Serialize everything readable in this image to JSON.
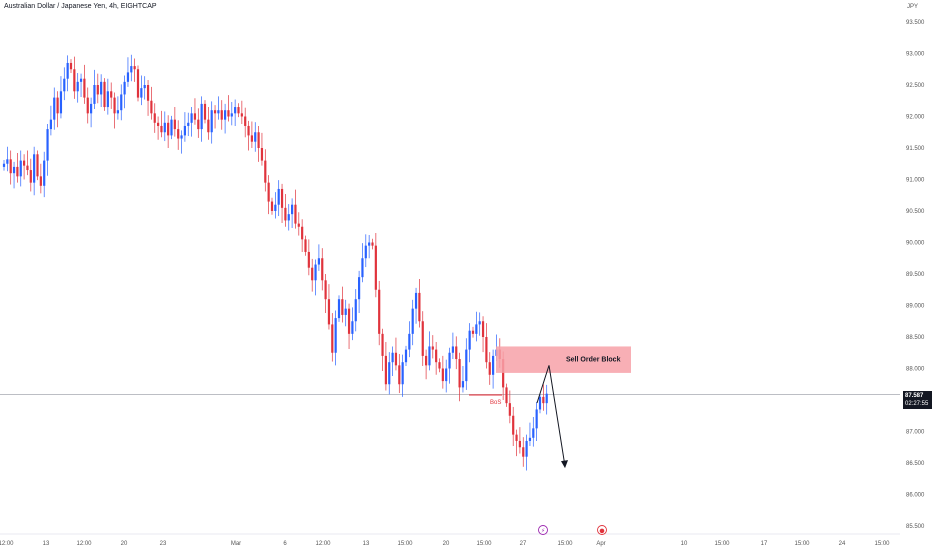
{
  "header": {
    "title": "Australian Dollar / Japanese Yen, 4h, EIGHTCAP",
    "currency": "JPY"
  },
  "price_tag": {
    "price": "87.587",
    "countdown": "02:27:55"
  },
  "annotations": {
    "order_block_label": "Sell Order Block",
    "bos_label": "BoS"
  },
  "colors": {
    "up": "#2962ff",
    "down": "#e0333c",
    "order_block": "#f7a1a8",
    "text": "#131722"
  },
  "event_markers": [
    {
      "name": "lightning-event-icon",
      "glyph": "⚡",
      "color": "#9c27b0"
    },
    {
      "name": "record-event-icon",
      "glyph": "●",
      "color": "#e0333c"
    }
  ],
  "chart_data": {
    "type": "candlestick",
    "title": "Australian Dollar / Japanese Yen, 4h, EIGHTCAP",
    "y_axis": {
      "ticks": [
        "93.500",
        "93.000",
        "92.500",
        "92.000",
        "91.500",
        "91.000",
        "90.500",
        "90.000",
        "89.500",
        "89.000",
        "88.500",
        "88.000",
        "87.500",
        "87.000",
        "86.500",
        "86.000",
        "85.500"
      ],
      "ylim": [
        85.5,
        93.5
      ]
    },
    "x_axis": {
      "ticks": [
        "12:00",
        "13",
        "12:00",
        "20",
        "23",
        "Mar",
        "6",
        "12:00",
        "13",
        "15:00",
        "20",
        "15:00",
        "27",
        "15:00",
        "Apr",
        "10",
        "15:00",
        "17",
        "15:00",
        "24",
        "15:00"
      ]
    },
    "current_price": 87.587,
    "order_block": {
      "label": "Sell Order Block",
      "top": 88.35,
      "bottom": 87.93
    },
    "bos": {
      "label": "BoS",
      "level": 87.58
    },
    "projection": {
      "from": 88.05,
      "to": 86.45
    },
    "close": [
      91.25,
      91.32,
      91.1,
      91.2,
      91.05,
      91.3,
      91.22,
      91.15,
      90.95,
      91.4,
      91.05,
      90.9,
      91.3,
      91.8,
      91.95,
      92.3,
      92.05,
      92.4,
      92.6,
      92.85,
      92.75,
      92.4,
      92.55,
      92.6,
      92.3,
      92.05,
      92.2,
      92.5,
      92.35,
      92.55,
      92.15,
      92.4,
      92.3,
      92.05,
      92.1,
      92.35,
      92.55,
      92.7,
      92.8,
      92.75,
      92.3,
      92.45,
      92.5,
      92.25,
      92.05,
      91.9,
      91.85,
      91.75,
      91.9,
      91.7,
      91.95,
      91.8,
      91.65,
      91.7,
      91.85,
      91.9,
      92.05,
      91.95,
      91.8,
      92.2,
      91.95,
      91.75,
      92.1,
      92.05,
      92.1,
      91.95,
      92.1,
      92.0,
      92.05,
      92.15,
      92.05,
      92.0,
      91.85,
      91.7,
      91.6,
      91.75,
      91.5,
      91.3,
      90.95,
      90.65,
      90.5,
      90.6,
      90.85,
      90.55,
      90.35,
      90.45,
      90.6,
      90.3,
      90.25,
      90.05,
      89.85,
      89.6,
      89.4,
      89.65,
      89.75,
      89.4,
      89.1,
      88.7,
      88.25,
      88.8,
      89.1,
      88.85,
      88.95,
      88.55,
      88.75,
      89.1,
      89.45,
      89.75,
      89.95,
      90.0,
      89.95,
      89.25,
      88.55,
      88.2,
      87.75,
      88.1,
      88.25,
      88.05,
      87.75,
      88.1,
      88.3,
      88.55,
      88.95,
      89.2,
      88.75,
      88.2,
      88.05,
      88.35,
      88.3,
      88.1,
      88.0,
      87.8,
      88.0,
      88.25,
      88.35,
      88.15,
      87.7,
      87.8,
      88.3,
      88.6,
      88.55,
      88.7,
      88.75,
      88.5,
      88.1,
      87.9,
      88.2,
      88.3,
      88.15,
      87.7,
      87.45,
      87.25,
      86.95,
      86.85,
      86.75,
      86.6,
      86.85,
      86.9,
      87.05,
      87.35,
      87.55,
      87.45,
      87.6
    ]
  }
}
